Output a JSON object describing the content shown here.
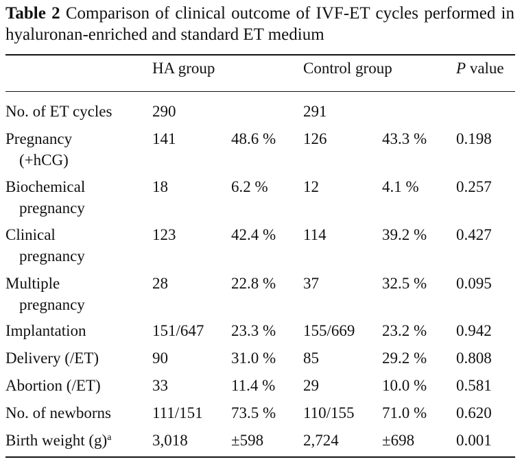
{
  "caption": {
    "label": "Table 2",
    "text": " Comparison of clinical outcome of IVF-ET cycles performed in hyaluronan-enriched and standard ET medium"
  },
  "headers": {
    "ha": "HA group",
    "control": "Control group",
    "p_italic": "P",
    "p_rest": " value"
  },
  "rows": [
    {
      "label": "No. of ET cycles",
      "label2": "",
      "sup": "",
      "ha_n": "290",
      "ha_pct": "",
      "c_n": "291",
      "c_pct": "",
      "p": ""
    },
    {
      "label": "Pregnancy",
      "label2": "(+hCG)",
      "sup": "",
      "ha_n": "141",
      "ha_pct": "48.6 %",
      "c_n": "126",
      "c_pct": "43.3 %",
      "p": "0.198"
    },
    {
      "label": "Biochemical",
      "label2": "pregnancy",
      "sup": "",
      "ha_n": "18",
      "ha_pct": "6.2 %",
      "c_n": "12",
      "c_pct": "4.1 %",
      "p": "0.257"
    },
    {
      "label": "Clinical",
      "label2": "pregnancy",
      "sup": "",
      "ha_n": "123",
      "ha_pct": "42.4 %",
      "c_n": "114",
      "c_pct": "39.2 %",
      "p": "0.427"
    },
    {
      "label": "Multiple",
      "label2": "pregnancy",
      "sup": "",
      "ha_n": "28",
      "ha_pct": "22.8 %",
      "c_n": "37",
      "c_pct": "32.5 %",
      "p": "0.095"
    },
    {
      "label": "Implantation",
      "label2": "",
      "sup": "",
      "ha_n": "151/647",
      "ha_pct": "23.3 %",
      "c_n": "155/669",
      "c_pct": "23.2 %",
      "p": "0.942"
    },
    {
      "label": "Delivery (/ET)",
      "label2": "",
      "sup": "",
      "ha_n": "90",
      "ha_pct": "31.0 %",
      "c_n": "85",
      "c_pct": "29.2 %",
      "p": "0.808"
    },
    {
      "label": "Abortion (/ET)",
      "label2": "",
      "sup": "",
      "ha_n": "33",
      "ha_pct": "11.4 %",
      "c_n": "29",
      "c_pct": "10.0 %",
      "p": "0.581"
    },
    {
      "label": "No. of newborns",
      "label2": "",
      "sup": "",
      "ha_n": "111/151",
      "ha_pct": "73.5 %",
      "c_n": "110/155",
      "c_pct": "71.0 %",
      "p": "0.620"
    },
    {
      "label": "Birth weight (g)",
      "label2": "",
      "sup": "a",
      "ha_n": "3,018",
      "ha_pct": "±598",
      "c_n": "2,724",
      "c_pct": "±698",
      "p": "0.001"
    }
  ]
}
